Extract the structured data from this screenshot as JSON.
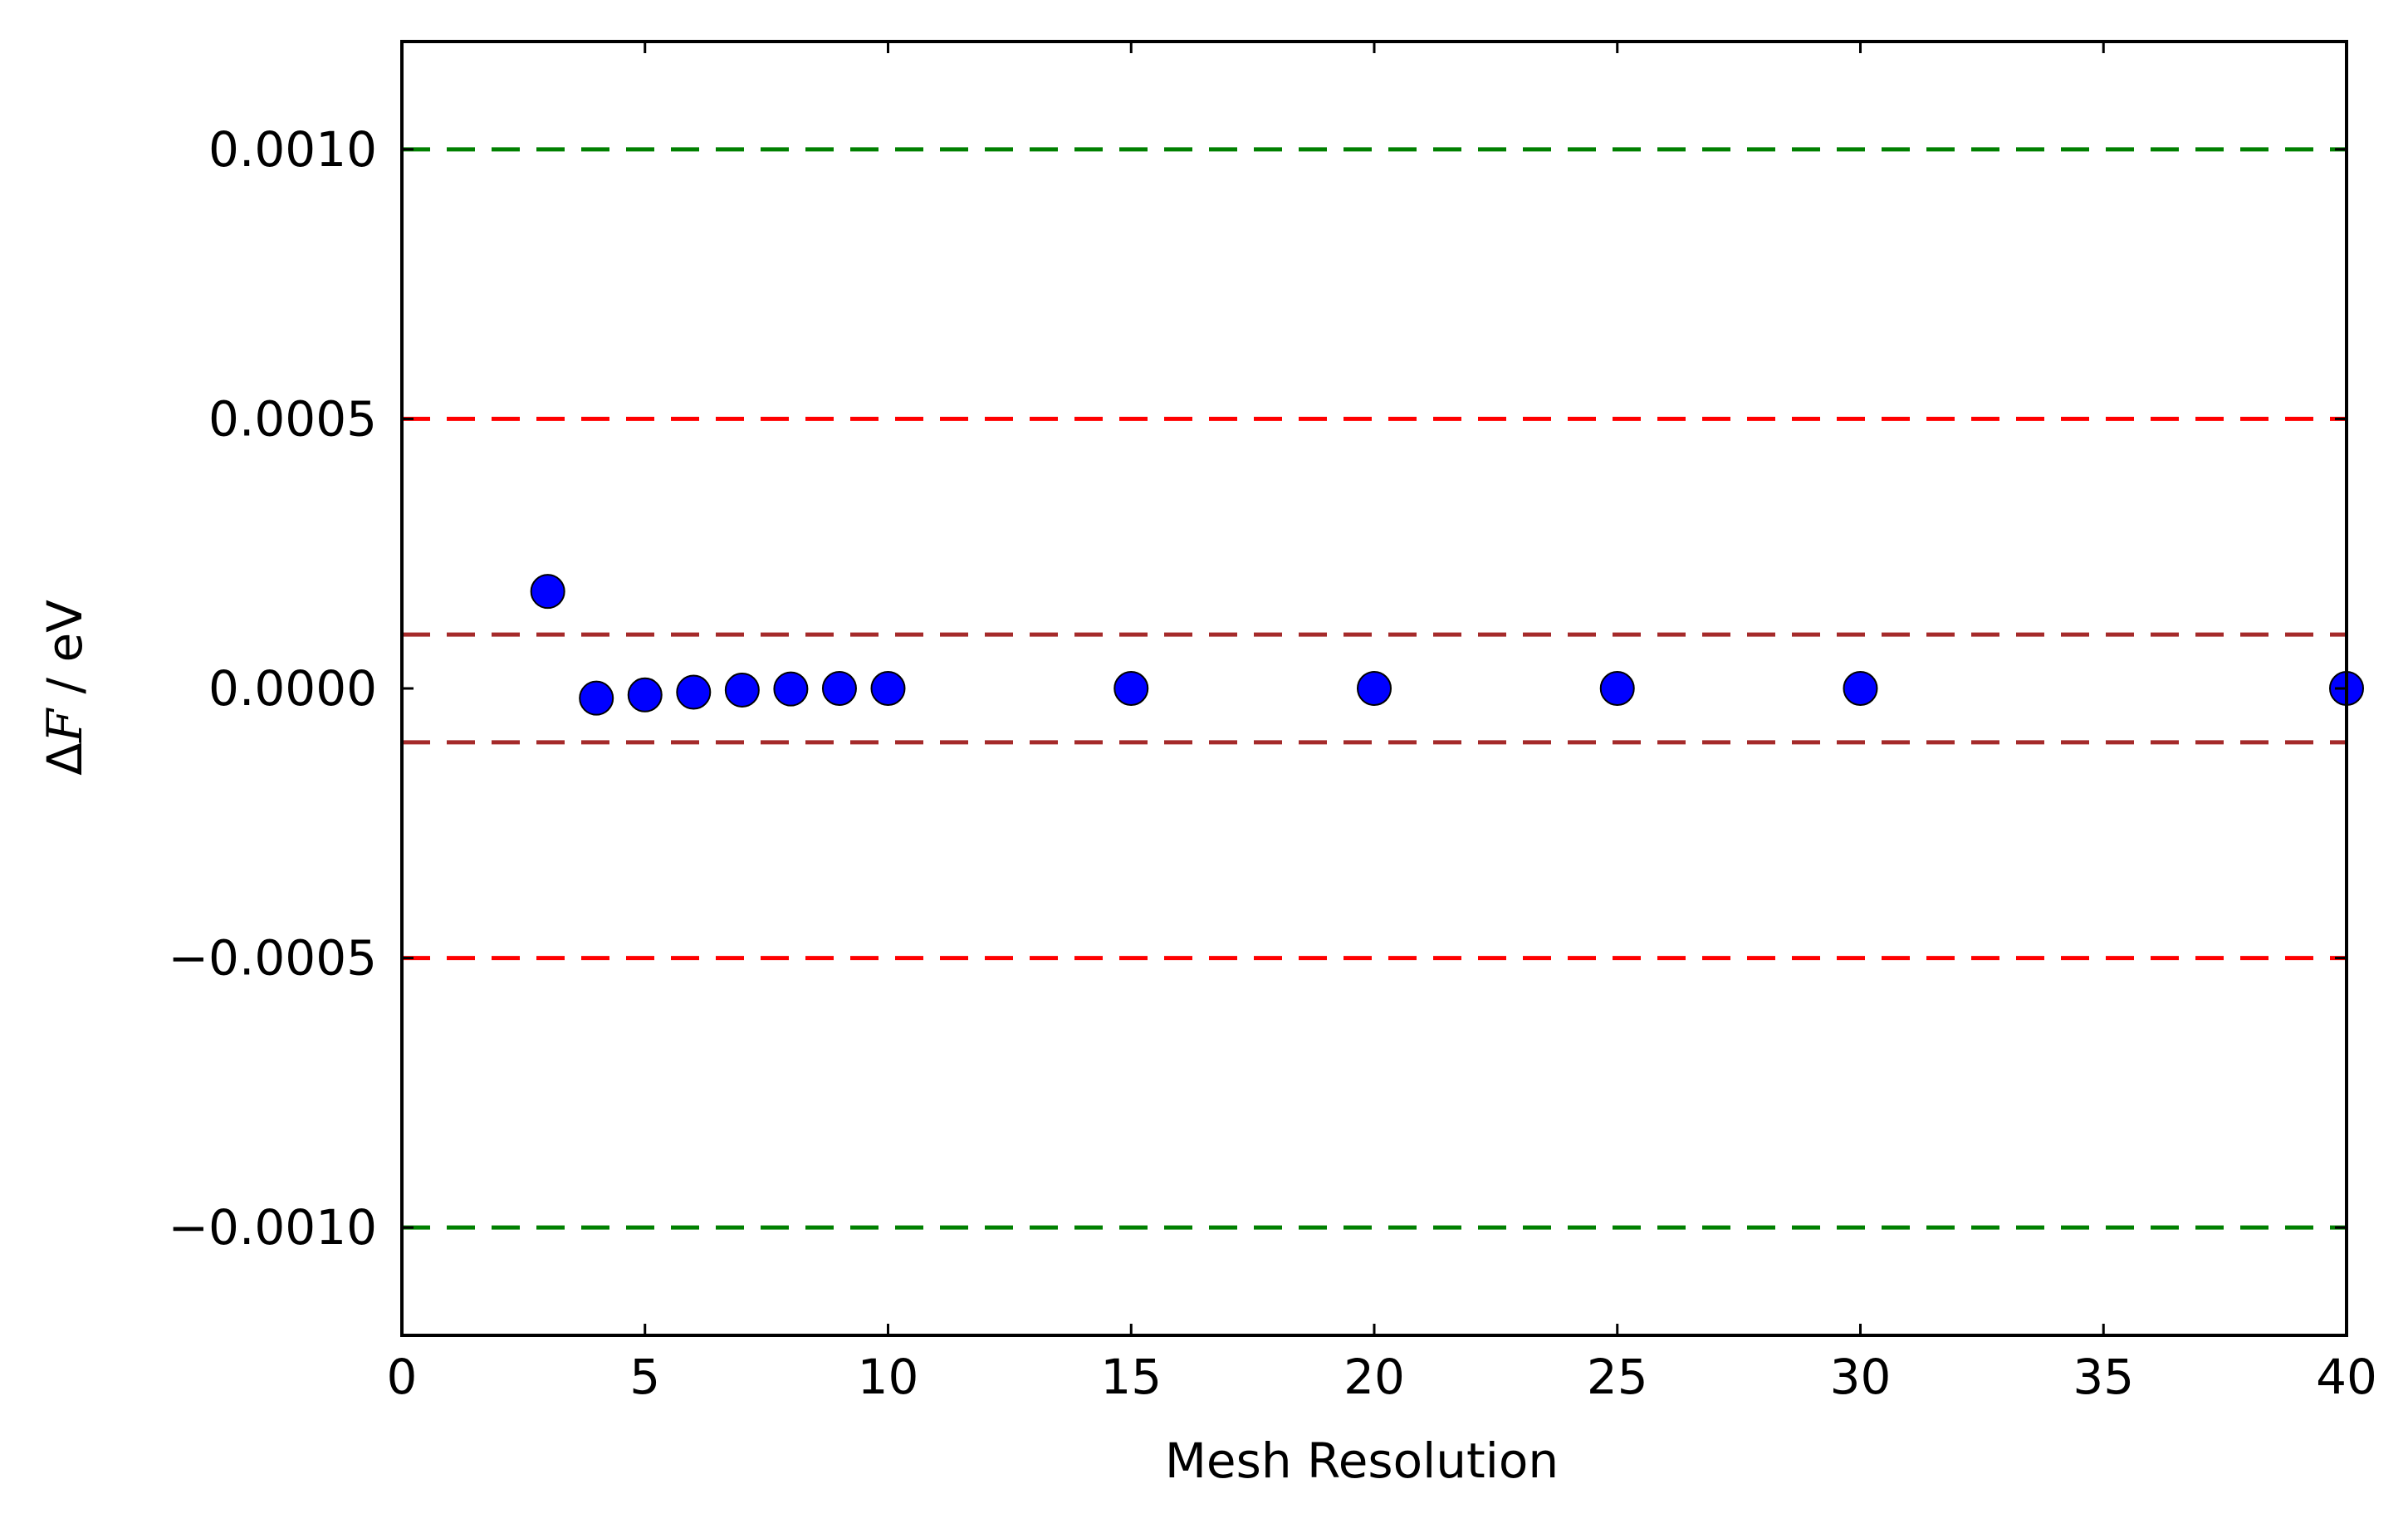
{
  "chart_data": {
    "type": "scatter",
    "title": "",
    "xlabel": "Mesh Resolution",
    "ylabel": {
      "delta": "Δ",
      "symbol": "F",
      "unit": " / eV"
    },
    "xlim": [
      0,
      40
    ],
    "ylim": [
      -0.0012,
      0.0012
    ],
    "grid": false,
    "xticks": [
      0,
      5,
      10,
      15,
      20,
      25,
      30,
      35,
      40
    ],
    "xtick_labels": [
      "0",
      "5",
      "10",
      "15",
      "20",
      "25",
      "30",
      "35",
      "40"
    ],
    "yticks": [
      0.001,
      0.0005,
      0.0,
      -0.0005,
      -0.001
    ],
    "ytick_labels": [
      "0.0010",
      "0.0005",
      "0.0000",
      "−0.0005",
      "−0.0010"
    ],
    "series": [
      {
        "x": [
          3,
          4,
          5,
          6,
          7,
          8,
          9,
          10,
          15,
          20,
          25,
          30,
          40
        ],
        "y": [
          0.00018,
          -1.8e-05,
          -1.2e-05,
          -7e-06,
          -3e-06,
          -1e-06,
          0.0,
          0.0,
          0.0,
          0.0,
          0.0,
          0.0,
          0.0
        ],
        "color": "#0000ff"
      }
    ],
    "reference_lines": [
      {
        "y": 0.001,
        "color": "#008000",
        "style": "dashed"
      },
      {
        "y": -0.001,
        "color": "#008000",
        "style": "dashed"
      },
      {
        "y": 0.0005,
        "color": "#ff0000",
        "style": "dashed"
      },
      {
        "y": -0.0005,
        "color": "#ff0000",
        "style": "dashed"
      },
      {
        "y": 0.0001,
        "color": "#a52a2a",
        "style": "dashed"
      },
      {
        "y": -0.0001,
        "color": "#a52a2a",
        "style": "dashed"
      }
    ]
  }
}
